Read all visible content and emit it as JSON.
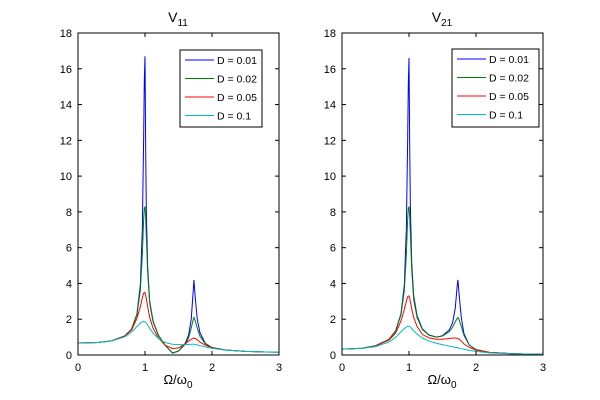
{
  "figure": {
    "background": "#ffffff"
  },
  "chart_data": [
    {
      "type": "line",
      "title": "V",
      "title_subscript": "11",
      "xlabel": "Ω/ω",
      "xlabel_subscript": "0",
      "ylabel": "",
      "xlim": [
        0,
        3
      ],
      "ylim": [
        0,
        18
      ],
      "xticks": [
        0,
        1,
        2,
        3
      ],
      "yticks": [
        0,
        2,
        4,
        6,
        8,
        10,
        12,
        14,
        16,
        18
      ],
      "grid": false,
      "legend_position": "top-right",
      "x": [
        0,
        0.3,
        0.5,
        0.7,
        0.8,
        0.88,
        0.93,
        0.96,
        0.98,
        0.99,
        1.0,
        1.01,
        1.02,
        1.04,
        1.07,
        1.12,
        1.2,
        1.3,
        1.41,
        1.5,
        1.6,
        1.65,
        1.69,
        1.72,
        1.73,
        1.75,
        1.78,
        1.82,
        1.9,
        2.0,
        2.2,
        2.5,
        2.8,
        3.0
      ],
      "series": [
        {
          "name": "D = 0.01",
          "color": "#0000ff",
          "values": [
            0.67,
            0.7,
            0.79,
            1.07,
            1.45,
            2.3,
            3.9,
            7.0,
            12.2,
            15.4,
            16.7,
            11.6,
            8.0,
            4.9,
            3.0,
            1.9,
            1.1,
            0.55,
            0.1,
            0.22,
            0.65,
            1.1,
            2.0,
            3.6,
            4.2,
            3.2,
            2.0,
            1.25,
            0.65,
            0.42,
            0.28,
            0.2,
            0.17,
            0.16
          ]
        },
        {
          "name": "D = 0.02",
          "color": "#008000",
          "values": [
            0.67,
            0.7,
            0.79,
            1.07,
            1.45,
            2.25,
            3.6,
            5.6,
            7.6,
            8.2,
            8.3,
            7.7,
            6.6,
            4.6,
            2.9,
            1.85,
            1.1,
            0.55,
            0.12,
            0.22,
            0.6,
            0.95,
            1.5,
            2.0,
            2.1,
            1.9,
            1.5,
            1.05,
            0.62,
            0.41,
            0.28,
            0.2,
            0.17,
            0.16
          ]
        },
        {
          "name": "D = 0.05",
          "color": "#ff0000",
          "values": [
            0.67,
            0.7,
            0.79,
            1.06,
            1.4,
            2.05,
            2.7,
            3.2,
            3.45,
            3.5,
            3.48,
            3.35,
            3.15,
            2.7,
            2.1,
            1.5,
            0.95,
            0.55,
            0.36,
            0.4,
            0.62,
            0.78,
            0.88,
            0.94,
            0.95,
            0.93,
            0.85,
            0.72,
            0.55,
            0.4,
            0.28,
            0.2,
            0.17,
            0.16
          ]
        },
        {
          "name": "D = 0.1",
          "color": "#00bfbf",
          "values": [
            0.67,
            0.7,
            0.78,
            1.02,
            1.28,
            1.6,
            1.78,
            1.86,
            1.88,
            1.87,
            1.85,
            1.82,
            1.78,
            1.68,
            1.5,
            1.22,
            0.92,
            0.7,
            0.6,
            0.58,
            0.58,
            0.59,
            0.6,
            0.6,
            0.6,
            0.59,
            0.56,
            0.52,
            0.45,
            0.37,
            0.27,
            0.2,
            0.17,
            0.16
          ]
        }
      ]
    },
    {
      "type": "line",
      "title": "V",
      "title_subscript": "21",
      "xlabel": "Ω/ω",
      "xlabel_subscript": "0",
      "ylabel": "",
      "xlim": [
        0,
        3
      ],
      "ylim": [
        0,
        18
      ],
      "xticks": [
        0,
        1,
        2,
        3
      ],
      "yticks": [
        0,
        2,
        4,
        6,
        8,
        10,
        12,
        14,
        16,
        18
      ],
      "grid": false,
      "legend_position": "top-right",
      "x": [
        0,
        0.3,
        0.5,
        0.7,
        0.8,
        0.88,
        0.93,
        0.96,
        0.98,
        0.99,
        1.0,
        1.01,
        1.02,
        1.04,
        1.07,
        1.12,
        1.2,
        1.3,
        1.41,
        1.5,
        1.6,
        1.65,
        1.69,
        1.72,
        1.73,
        1.75,
        1.78,
        1.82,
        1.9,
        2.0,
        2.2,
        2.5,
        2.8,
        3.0
      ],
      "series": [
        {
          "name": "D = 0.01",
          "color": "#0000ff",
          "values": [
            0.33,
            0.38,
            0.52,
            0.87,
            1.35,
            2.3,
            3.9,
            7.0,
            12.0,
            15.2,
            16.6,
            11.8,
            8.4,
            5.2,
            3.3,
            2.2,
            1.45,
            1.12,
            1.0,
            1.08,
            1.4,
            1.8,
            2.6,
            3.9,
            4.2,
            3.3,
            2.1,
            1.2,
            0.55,
            0.3,
            0.15,
            0.08,
            0.05,
            0.04
          ]
        },
        {
          "name": "D = 0.02",
          "color": "#008000",
          "values": [
            0.33,
            0.38,
            0.52,
            0.87,
            1.33,
            2.25,
            3.6,
            5.6,
            7.6,
            8.2,
            8.3,
            7.8,
            6.8,
            4.8,
            3.1,
            2.1,
            1.42,
            1.1,
            1.0,
            1.06,
            1.3,
            1.55,
            1.85,
            2.05,
            2.1,
            1.95,
            1.6,
            1.1,
            0.55,
            0.3,
            0.15,
            0.08,
            0.05,
            0.04
          ]
        },
        {
          "name": "D = 0.05",
          "color": "#ff0000",
          "values": [
            0.33,
            0.37,
            0.5,
            0.83,
            1.22,
            1.9,
            2.55,
            3.0,
            3.25,
            3.3,
            3.3,
            3.2,
            3.0,
            2.6,
            2.1,
            1.6,
            1.15,
            0.95,
            0.88,
            0.88,
            0.92,
            0.95,
            0.95,
            0.93,
            0.92,
            0.88,
            0.78,
            0.62,
            0.42,
            0.27,
            0.14,
            0.08,
            0.05,
            0.04
          ]
        },
        {
          "name": "D = 0.1",
          "color": "#00bfbf",
          "values": [
            0.33,
            0.37,
            0.47,
            0.72,
            0.98,
            1.3,
            1.48,
            1.56,
            1.6,
            1.6,
            1.6,
            1.58,
            1.55,
            1.48,
            1.35,
            1.17,
            0.95,
            0.78,
            0.65,
            0.58,
            0.5,
            0.46,
            0.43,
            0.41,
            0.4,
            0.38,
            0.36,
            0.32,
            0.26,
            0.2,
            0.12,
            0.07,
            0.05,
            0.04
          ]
        }
      ]
    }
  ]
}
